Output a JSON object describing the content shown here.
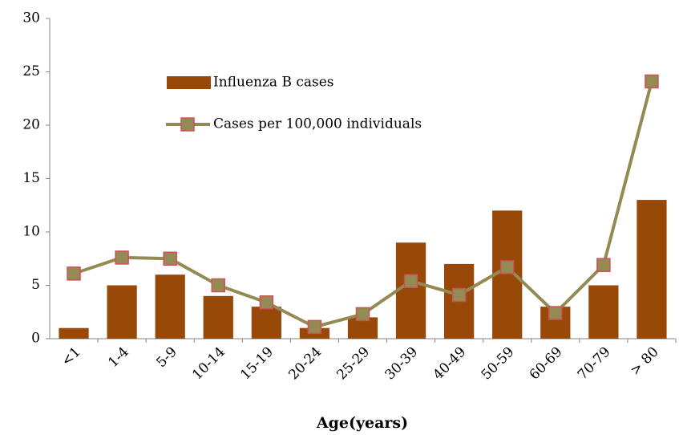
{
  "chart_data": {
    "type": "bar",
    "x_label": "Age(years)",
    "categories": [
      "<1",
      "1-4",
      "5-9",
      "10-14",
      "15-19",
      "20-24",
      "25-29",
      "30-39",
      "40-49",
      "50-59",
      "60-69",
      "70-79",
      "> 80"
    ],
    "series": [
      {
        "name": "Influenza B cases",
        "type": "bar",
        "color": "#984807",
        "values": [
          1,
          5,
          6,
          4,
          3,
          1,
          2,
          9,
          7,
          12,
          3,
          5,
          13
        ]
      },
      {
        "name": "Cases per 100,000 individuals",
        "type": "line",
        "color": "#948a54",
        "marker_edge": "#d0505a",
        "values": [
          6.1,
          7.6,
          7.5,
          5.0,
          3.4,
          1.1,
          2.3,
          5.4,
          4.1,
          6.7,
          2.4,
          6.9,
          24.1
        ]
      }
    ],
    "ylim": [
      0,
      30
    ],
    "yticks": [
      0,
      5,
      10,
      15,
      20,
      25,
      30
    ],
    "grid": false
  }
}
